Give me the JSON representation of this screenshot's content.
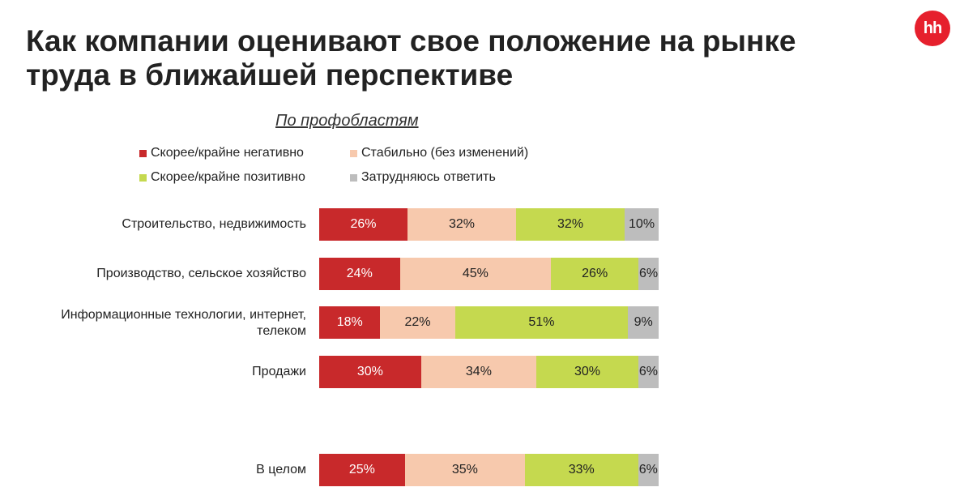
{
  "title": "Как компании оценивают свое положение на рынке труда в ближайшей перспективе",
  "logo_text": "hh",
  "subtitle": "По профобластям",
  "colors": {
    "negative": "#c8292b",
    "stable": "#f7c9ad",
    "positive": "#c5d94f",
    "unsure": "#bdbdbd",
    "logo": "#e6202d"
  },
  "chart_data": {
    "type": "bar",
    "orientation": "horizontal",
    "stacked": "percent",
    "categories": [
      "Строительство, недвижимость",
      "Производство, сельское хозяйство",
      "Информационные технологии, интернет, телеком",
      "Продажи",
      "В целом"
    ],
    "series": [
      {
        "name": "Скорее/крайне негативно",
        "values": [
          26,
          24,
          18,
          30,
          25
        ]
      },
      {
        "name": "Стабильно (без изменений)",
        "values": [
          32,
          45,
          22,
          34,
          35
        ]
      },
      {
        "name": "Скорее/крайне позитивно",
        "values": [
          32,
          26,
          51,
          30,
          33
        ]
      },
      {
        "name": "Затрудняюсь ответить",
        "values": [
          10,
          6,
          9,
          6,
          6
        ]
      }
    ],
    "value_suffix": "%",
    "legend_position": "top"
  }
}
